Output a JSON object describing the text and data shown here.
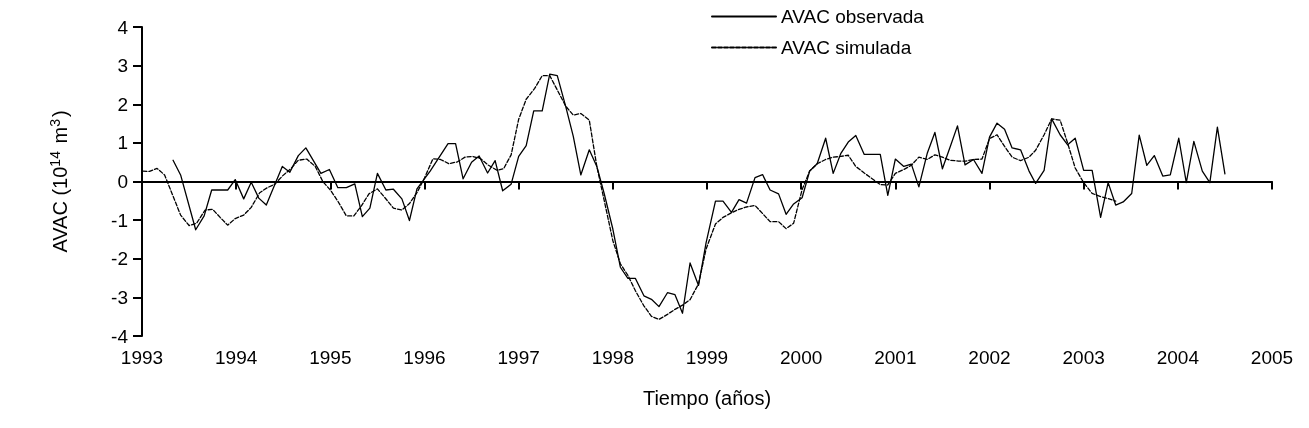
{
  "chart_data": {
    "type": "line",
    "xlabel": "Tiempo (años)",
    "ylabel": "AVAC (10$^{14}$ m$^{3}$)",
    "xlim": [
      1993,
      2005
    ],
    "xticks": [
      1993,
      1994,
      1995,
      1996,
      1997,
      1998,
      1999,
      2000,
      2001,
      2002,
      2003,
      2004,
      2005
    ],
    "ylim": [
      -4,
      4
    ],
    "yticks": [
      -4,
      -3,
      -2,
      -1,
      0,
      1,
      2,
      3,
      4
    ],
    "legend": "top right",
    "marker": "none",
    "series": [
      {
        "name": "AVAC observada",
        "color": "#000000",
        "line_style": "solid",
        "x": [
          1993.33,
          1993.41,
          1993.57,
          1993.66,
          1993.74,
          1993.91,
          1993.99,
          1994.08,
          1994.16,
          1994.24,
          1994.32,
          1994.49,
          1994.57,
          1994.66,
          1994.74,
          1994.9,
          1994.99,
          1995.08,
          1995.17,
          1995.26,
          1995.34,
          1995.42,
          1995.5,
          1995.59,
          1995.67,
          1995.76,
          1995.84,
          1995.92,
          1996.06,
          1996.25,
          1996.33,
          1996.41,
          1996.5,
          1996.58,
          1996.67,
          1996.75,
          1996.83,
          1996.92,
          1997.0,
          1997.08,
          1997.16,
          1997.25,
          1997.33,
          1997.41,
          1997.5,
          1997.58,
          1997.66,
          1997.75,
          1997.83,
          1997.91,
          1998.0,
          1998.08,
          1998.16,
          1998.24,
          1998.33,
          1998.41,
          1998.49,
          1998.58,
          1998.66,
          1998.74,
          1998.82,
          1998.91,
          1998.99,
          1999.09,
          1999.17,
          1999.26,
          1999.34,
          1999.42,
          1999.51,
          1999.59,
          1999.67,
          1999.76,
          1999.84,
          1999.92,
          2000.01,
          2000.09,
          2000.17,
          2000.26,
          2000.34,
          2000.42,
          2000.5,
          2000.58,
          2000.67,
          2000.84,
          2000.92,
          2001.0,
          2001.09,
          2001.17,
          2001.25,
          2001.34,
          2001.42,
          2001.5,
          2001.58,
          2001.66,
          2001.74,
          2001.83,
          2001.92,
          2002.0,
          2002.08,
          2002.16,
          2002.24,
          2002.33,
          2002.42,
          2002.49,
          2002.58,
          2002.66,
          2002.75,
          2002.83,
          2002.91,
          2003.0,
          2003.09,
          2003.18,
          2003.26,
          2003.34,
          2003.42,
          2003.51,
          2003.59,
          2003.67,
          2003.75,
          2003.84,
          2003.92,
          2004.01,
          2004.09,
          2004.17,
          2004.26,
          2004.34,
          2004.42,
          2004.5
        ],
        "values": [
          0.55,
          0.17,
          -1.25,
          -0.89,
          -0.22,
          -0.22,
          0.05,
          -0.45,
          -0.02,
          -0.43,
          -0.61,
          0.39,
          0.24,
          0.67,
          0.87,
          0.21,
          0.31,
          -0.16,
          -0.16,
          -0.06,
          -0.91,
          -0.69,
          0.21,
          -0.22,
          -0.2,
          -0.45,
          -1.01,
          -0.19,
          0.27,
          0.98,
          0.98,
          0.07,
          0.5,
          0.66,
          0.22,
          0.54,
          -0.24,
          -0.07,
          0.65,
          0.93,
          1.83,
          1.83,
          2.78,
          2.74,
          1.94,
          1.17,
          0.17,
          0.82,
          0.39,
          -0.33,
          -1.23,
          -2.22,
          -2.51,
          -2.51,
          -2.96,
          -3.05,
          -3.24,
          -2.88,
          -2.93,
          -3.41,
          -2.11,
          -2.69,
          -1.59,
          -0.51,
          -0.51,
          -0.8,
          -0.47,
          -0.56,
          0.1,
          0.18,
          -0.22,
          -0.32,
          -0.85,
          -0.58,
          -0.42,
          0.27,
          0.46,
          1.12,
          0.21,
          0.72,
          1.02,
          1.19,
          0.7,
          0.7,
          -0.36,
          0.58,
          0.39,
          0.45,
          -0.14,
          0.74,
          1.27,
          0.33,
          0.88,
          1.44,
          0.43,
          0.57,
          0.21,
          1.15,
          1.51,
          1.35,
          0.87,
          0.82,
          0.27,
          -0.05,
          0.29,
          1.62,
          1.21,
          0.95,
          1.12,
          0.29,
          0.29,
          -0.93,
          -0.03,
          -0.61,
          -0.53,
          -0.31,
          1.2,
          0.42,
          0.67,
          0.14,
          0.17,
          1.12,
          -0.03,
          1.04,
          0.27,
          -0.03,
          1.41,
          0.2
        ]
      },
      {
        "name": "AVAC simulada",
        "color": "#000000",
        "line_style": "dashed",
        "x": [
          1993.01,
          1993.08,
          1993.16,
          1993.24,
          1993.33,
          1993.41,
          1993.5,
          1993.58,
          1993.67,
          1993.75,
          1993.83,
          1993.91,
          1993.99,
          1994.08,
          1994.16,
          1994.25,
          1994.33,
          1994.41,
          1994.49,
          1994.58,
          1994.66,
          1994.75,
          1994.84,
          1994.92,
          1995.0,
          1995.08,
          1995.17,
          1995.25,
          1995.33,
          1995.41,
          1995.5,
          1995.58,
          1995.67,
          1995.76,
          1995.84,
          1995.92,
          1996.0,
          1996.09,
          1996.17,
          1996.26,
          1996.35,
          1996.43,
          1996.51,
          1996.59,
          1996.68,
          1996.77,
          1996.84,
          1996.92,
          1997.0,
          1997.08,
          1997.17,
          1997.25,
          1997.33,
          1997.41,
          1997.5,
          1997.58,
          1997.66,
          1997.75,
          1997.83,
          1997.91,
          1998.0,
          1998.08,
          1998.16,
          1998.24,
          1998.33,
          1998.41,
          1998.49,
          1998.58,
          1998.66,
          1998.74,
          1998.82,
          1998.91,
          1998.99,
          1999.09,
          1999.17,
          1999.26,
          1999.34,
          1999.42,
          1999.51,
          1999.59,
          1999.67,
          1999.76,
          1999.84,
          1999.92,
          2000.01,
          2000.09,
          2000.17,
          2000.26,
          2000.34,
          2000.42,
          2000.5,
          2000.58,
          2000.67,
          2000.75,
          2000.84,
          2000.92,
          2001.0,
          2001.09,
          2001.17,
          2001.25,
          2001.34,
          2001.42,
          2001.5,
          2001.58,
          2001.67,
          2001.75,
          2001.83,
          2001.92,
          2002.0,
          2002.08,
          2002.16,
          2002.24,
          2002.33,
          2002.42,
          2002.49,
          2002.58,
          2002.66,
          2002.75,
          2002.83,
          2002.91,
          2003.0,
          2003.09,
          2003.18,
          2003.26,
          2003.34
        ],
        "values": [
          0.27,
          0.26,
          0.34,
          0.17,
          -0.38,
          -0.87,
          -1.14,
          -1.08,
          -0.74,
          -0.72,
          -0.93,
          -1.13,
          -0.96,
          -0.87,
          -0.67,
          -0.29,
          -0.16,
          -0.07,
          0.14,
          0.33,
          0.55,
          0.58,
          0.39,
          0.0,
          -0.22,
          -0.51,
          -0.89,
          -0.89,
          -0.63,
          -0.32,
          -0.19,
          -0.42,
          -0.69,
          -0.74,
          -0.57,
          -0.29,
          0.09,
          0.59,
          0.57,
          0.46,
          0.51,
          0.63,
          0.65,
          0.6,
          0.42,
          0.29,
          0.33,
          0.69,
          1.61,
          2.13,
          2.41,
          2.74,
          2.74,
          2.37,
          1.95,
          1.72,
          1.76,
          1.59,
          0.39,
          -0.51,
          -1.53,
          -2.13,
          -2.43,
          -2.83,
          -3.22,
          -3.49,
          -3.57,
          -3.44,
          -3.31,
          -3.2,
          -3.06,
          -2.65,
          -1.75,
          -1.1,
          -0.93,
          -0.81,
          -0.72,
          -0.66,
          -0.62,
          -0.83,
          -1.04,
          -1.04,
          -1.22,
          -1.08,
          -0.21,
          0.27,
          0.46,
          0.57,
          0.63,
          0.65,
          0.68,
          0.39,
          0.22,
          0.08,
          -0.08,
          -0.09,
          0.21,
          0.31,
          0.42,
          0.63,
          0.57,
          0.69,
          0.63,
          0.55,
          0.53,
          0.53,
          0.57,
          0.58,
          1.11,
          1.21,
          0.91,
          0.63,
          0.54,
          0.63,
          0.81,
          1.21,
          1.62,
          1.59,
          0.99,
          0.35,
          -0.03,
          -0.31,
          -0.39,
          -0.44,
          -0.51
        ]
      }
    ]
  }
}
